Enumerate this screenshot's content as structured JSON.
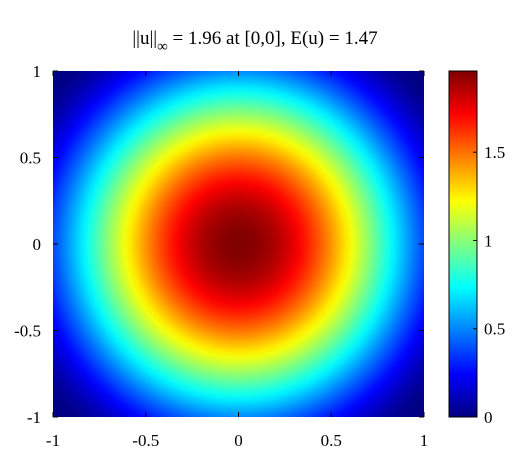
{
  "chart_data": {
    "type": "heatmap",
    "title": {
      "norm_bars": "||u||",
      "norm_subscript": "∞",
      "rest": " = 1.96 at [0,0], E(u) = 1.47"
    },
    "xlabel": "",
    "ylabel": "",
    "xlim": [
      -1,
      1
    ],
    "ylim": [
      -1,
      1
    ],
    "x_ticks": [
      -1,
      -0.5,
      0,
      0.5,
      1
    ],
    "x_tick_labels": [
      "-1",
      "-0.5",
      "0",
      "0.5",
      "1"
    ],
    "y_ticks": [
      1,
      0.5,
      0,
      -0.5,
      -1
    ],
    "y_tick_labels": [
      "1",
      "0.5",
      "0",
      "-0.5",
      "-1"
    ],
    "max_value": 1.96,
    "max_location": [
      0,
      0
    ],
    "energy": 1.47,
    "colormap": "jet",
    "colorbar": {
      "limits": [
        0,
        1.96
      ],
      "ticks": [
        0,
        0.5,
        1,
        1.5
      ],
      "tick_labels": [
        "0",
        "0.5",
        "1",
        "1.5"
      ]
    },
    "grid": false
  },
  "colors": {
    "background": "#ffffff",
    "axes": "#000000"
  }
}
